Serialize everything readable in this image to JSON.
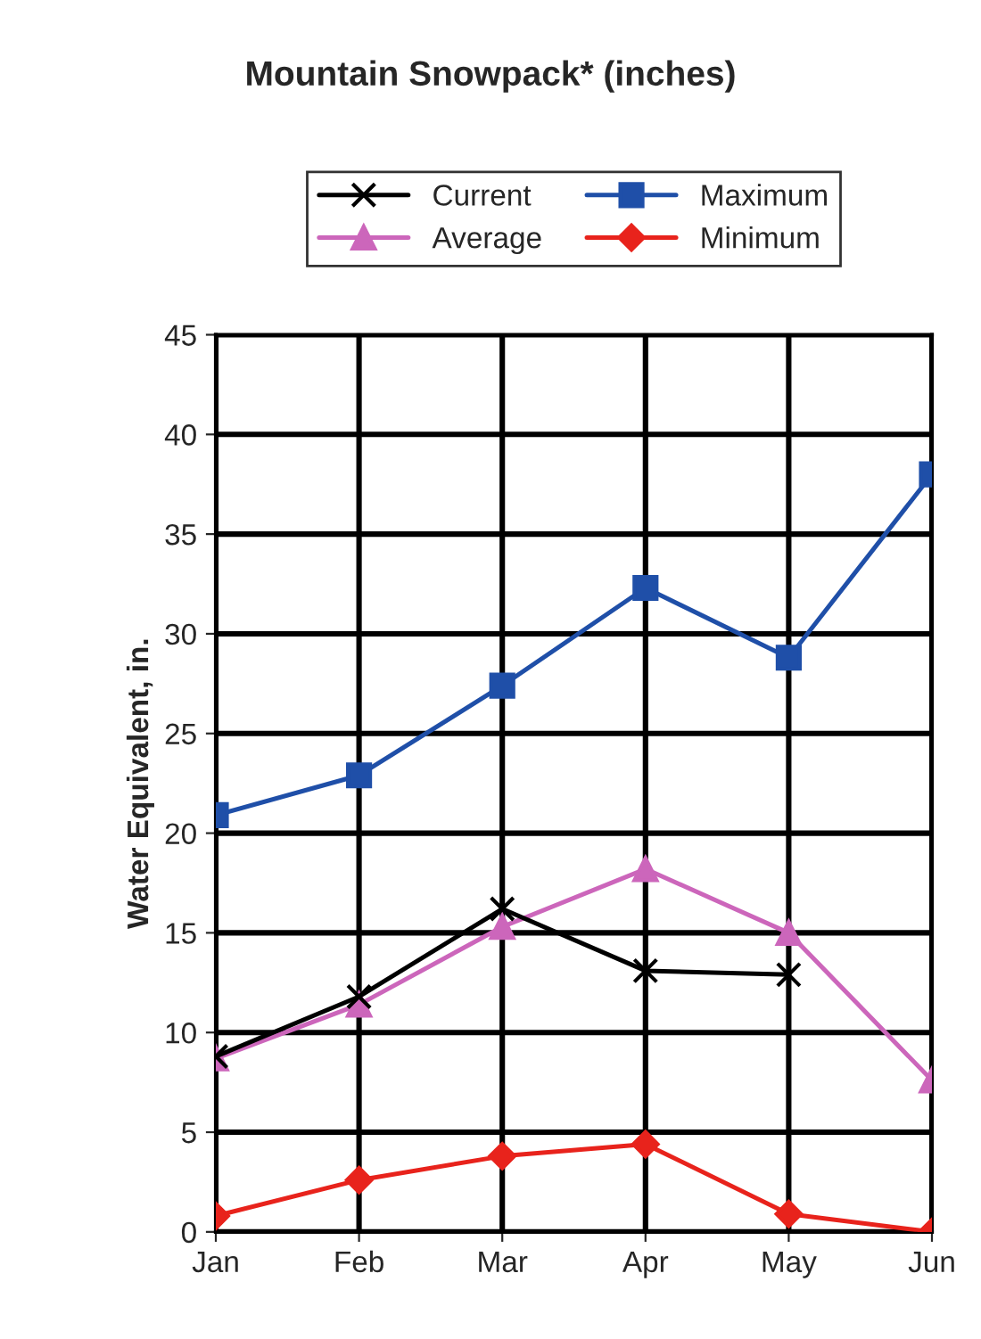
{
  "chart_data": {
    "type": "line",
    "title": "Mountain Snowpack* (inches)",
    "ylabel": "Water Equivalent, in.",
    "categories": [
      "Jan",
      "Feb",
      "Mar",
      "Apr",
      "May",
      "Jun"
    ],
    "series": [
      {
        "name": "Current",
        "color": "#000000",
        "marker": "cross",
        "values": [
          8.8,
          11.8,
          16.2,
          13.1,
          12.9,
          null
        ]
      },
      {
        "name": "Average",
        "color": "#cc66bb",
        "marker": "triangle",
        "values": [
          8.7,
          11.4,
          15.3,
          18.2,
          15.0,
          7.6
        ]
      },
      {
        "name": "Maximum",
        "color": "#1f4fa8",
        "marker": "square",
        "values": [
          20.9,
          22.9,
          27.4,
          32.3,
          28.8,
          38.0
        ]
      },
      {
        "name": "Minimum",
        "color": "#e8231c",
        "marker": "diamond",
        "values": [
          0.8,
          2.6,
          3.8,
          4.4,
          0.9,
          0.0
        ]
      }
    ],
    "ylim": [
      0,
      45
    ],
    "yticks": [
      0,
      5,
      10,
      15,
      20,
      25,
      30,
      35,
      40,
      45
    ],
    "grid": true,
    "legend": "top"
  }
}
